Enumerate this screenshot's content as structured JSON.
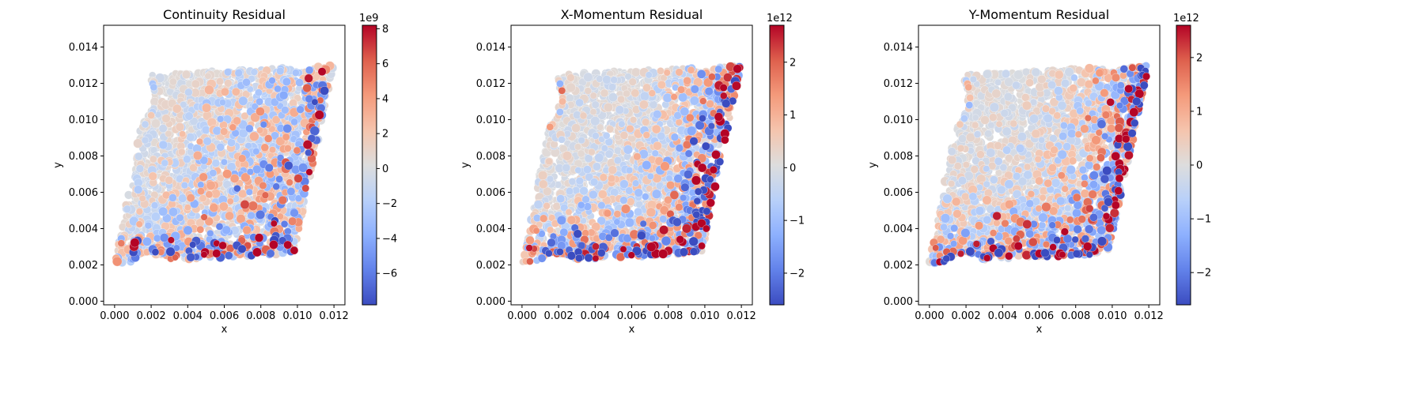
{
  "chart_data": [
    {
      "type": "scatter",
      "title": "Continuity Residual",
      "xlabel": "x",
      "ylabel": "y",
      "xlim": [
        -0.0006,
        0.0126
      ],
      "ylim": [
        -0.0002,
        0.0152
      ],
      "x_ticks": [
        "0.000",
        "0.002",
        "0.004",
        "0.006",
        "0.008",
        "0.010",
        "0.012"
      ],
      "y_ticks": [
        "0.000",
        "0.002",
        "0.004",
        "0.006",
        "0.008",
        "0.010",
        "0.012",
        "0.014"
      ],
      "colorbar": {
        "cmap": "coolwarm",
        "offset_label": "1e9",
        "range": [
          -7.8,
          8.2
        ],
        "ticks": [
          "-6",
          "-4",
          "-2",
          "0",
          "2",
          "4",
          "6",
          "8"
        ],
        "tick_values": [
          -6,
          -4,
          -2,
          0,
          2,
          4,
          6,
          8
        ]
      },
      "residual_scale": 7.8,
      "high_residual_zone": "lower-right"
    },
    {
      "type": "scatter",
      "title": "X-Momentum Residual",
      "xlabel": "x",
      "ylabel": "y",
      "xlim": [
        -0.0006,
        0.0126
      ],
      "ylim": [
        -0.0002,
        0.0152
      ],
      "x_ticks": [
        "0.000",
        "0.002",
        "0.004",
        "0.006",
        "0.008",
        "0.010",
        "0.012"
      ],
      "y_ticks": [
        "0.000",
        "0.002",
        "0.004",
        "0.006",
        "0.008",
        "0.010",
        "0.012",
        "0.014"
      ],
      "colorbar": {
        "cmap": "coolwarm",
        "offset_label": "1e12",
        "range": [
          -2.6,
          2.7
        ],
        "ticks": [
          "-2",
          "-1",
          "0",
          "1",
          "2"
        ],
        "tick_values": [
          -2,
          -1,
          0,
          1,
          2
        ]
      },
      "residual_scale": 2.6,
      "high_residual_zone": "lower-right-boundary"
    },
    {
      "type": "scatter",
      "title": "Y-Momentum Residual",
      "xlabel": "x",
      "ylabel": "y",
      "xlim": [
        -0.0006,
        0.0126
      ],
      "ylim": [
        -0.0002,
        0.0152
      ],
      "x_ticks": [
        "0.000",
        "0.002",
        "0.004",
        "0.006",
        "0.008",
        "0.010",
        "0.012"
      ],
      "y_ticks": [
        "0.000",
        "0.002",
        "0.004",
        "0.006",
        "0.008",
        "0.010",
        "0.012",
        "0.014"
      ],
      "colorbar": {
        "cmap": "coolwarm",
        "offset_label": "1e12",
        "range": [
          -2.6,
          2.6
        ],
        "ticks": [
          "-2",
          "-1",
          "0",
          "1",
          "2"
        ],
        "tick_values": [
          -2,
          -1,
          0,
          1,
          2
        ]
      },
      "residual_scale": 2.5,
      "high_residual_zone": "lower-right-boundary"
    }
  ]
}
